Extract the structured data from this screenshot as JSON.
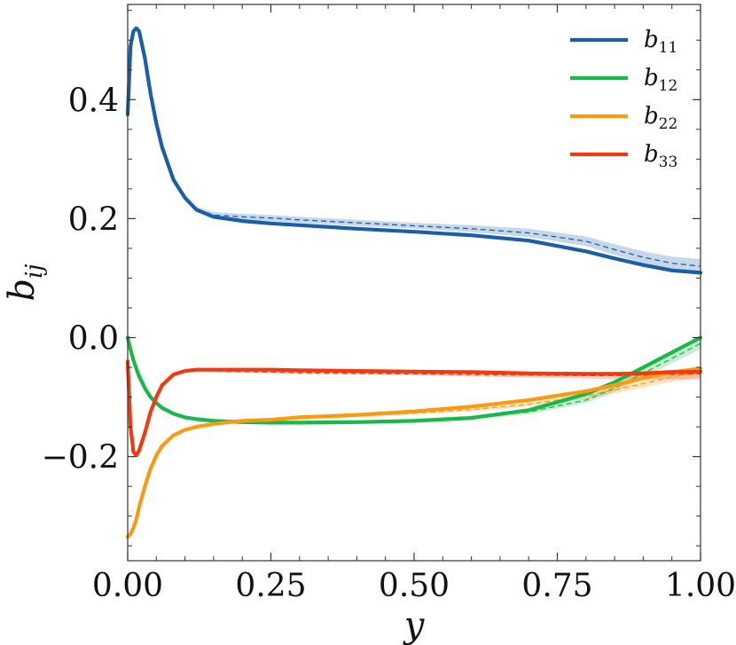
{
  "chart_data": {
    "type": "line",
    "xlabel": "y",
    "ylabel": "b",
    "ylabel_sub": "ij",
    "xlim": [
      0.0,
      1.0
    ],
    "ylim": [
      -0.375,
      0.56
    ],
    "x_ticks": [
      0.0,
      0.25,
      0.5,
      0.75,
      1.0
    ],
    "x_tick_labels": [
      "0.00",
      "0.25",
      "0.50",
      "0.75",
      "1.00"
    ],
    "y_ticks": [
      -0.2,
      0.0,
      0.2,
      0.4
    ],
    "y_tick_labels": [
      "−0.2",
      "0.0",
      "0.2",
      "0.4"
    ],
    "grid": false,
    "legend_position": "top-right",
    "x": [
      0.0,
      0.005,
      0.01,
      0.015,
      0.02,
      0.03,
      0.04,
      0.05,
      0.06,
      0.08,
      0.1,
      0.12,
      0.15,
      0.2,
      0.25,
      0.3,
      0.4,
      0.5,
      0.6,
      0.7,
      0.8,
      0.85,
      0.9,
      0.95,
      1.0
    ],
    "series": [
      {
        "name": "b",
        "sub": "11",
        "color": "#1a5ea8",
        "values": [
          0.375,
          0.49,
          0.515,
          0.52,
          0.515,
          0.47,
          0.41,
          0.36,
          0.32,
          0.265,
          0.235,
          0.215,
          0.203,
          0.196,
          0.192,
          0.189,
          0.183,
          0.178,
          0.172,
          0.163,
          0.145,
          0.133,
          0.122,
          0.113,
          0.109
        ],
        "reference": [
          0.375,
          0.49,
          0.515,
          0.52,
          0.515,
          0.47,
          0.41,
          0.36,
          0.32,
          0.265,
          0.235,
          0.216,
          0.206,
          0.203,
          0.201,
          0.198,
          0.193,
          0.188,
          0.183,
          0.176,
          0.162,
          0.148,
          0.135,
          0.125,
          0.12
        ],
        "band": [
          0.0,
          0.0,
          0.0,
          0.0,
          0.0,
          0.0,
          0.0,
          0.0,
          0.0,
          0.0,
          0.002,
          0.004,
          0.005,
          0.005,
          0.005,
          0.005,
          0.005,
          0.005,
          0.006,
          0.007,
          0.008,
          0.009,
          0.01,
          0.011,
          0.012
        ]
      },
      {
        "name": "b",
        "sub": "12",
        "color": "#18b84a",
        "values": [
          0.0,
          -0.02,
          -0.038,
          -0.052,
          -0.065,
          -0.085,
          -0.1,
          -0.11,
          -0.118,
          -0.128,
          -0.134,
          -0.137,
          -0.14,
          -0.142,
          -0.143,
          -0.143,
          -0.142,
          -0.14,
          -0.135,
          -0.122,
          -0.095,
          -0.075,
          -0.05,
          -0.025,
          0.0
        ],
        "reference": [
          0.0,
          -0.02,
          -0.038,
          -0.052,
          -0.065,
          -0.085,
          -0.1,
          -0.11,
          -0.118,
          -0.128,
          -0.134,
          -0.137,
          -0.139,
          -0.141,
          -0.142,
          -0.142,
          -0.141,
          -0.139,
          -0.134,
          -0.125,
          -0.105,
          -0.085,
          -0.06,
          -0.035,
          -0.01
        ],
        "band": [
          0.0,
          0.0,
          0.0,
          0.0,
          0.0,
          0.0,
          0.0,
          0.0,
          0.0,
          0.0,
          0.002,
          0.002,
          0.002,
          0.002,
          0.002,
          0.002,
          0.002,
          0.002,
          0.003,
          0.004,
          0.005,
          0.006,
          0.007,
          0.008,
          0.009
        ]
      },
      {
        "name": "b",
        "sub": "22",
        "color": "#fb9a12",
        "values": [
          -0.335,
          -0.33,
          -0.32,
          -0.305,
          -0.285,
          -0.25,
          -0.22,
          -0.198,
          -0.182,
          -0.164,
          -0.155,
          -0.15,
          -0.145,
          -0.14,
          -0.138,
          -0.134,
          -0.13,
          -0.124,
          -0.116,
          -0.105,
          -0.09,
          -0.08,
          -0.068,
          -0.058,
          -0.052
        ],
        "reference": [
          -0.335,
          -0.33,
          -0.32,
          -0.305,
          -0.285,
          -0.25,
          -0.22,
          -0.198,
          -0.182,
          -0.164,
          -0.155,
          -0.15,
          -0.145,
          -0.141,
          -0.139,
          -0.136,
          -0.132,
          -0.127,
          -0.121,
          -0.112,
          -0.098,
          -0.088,
          -0.077,
          -0.066,
          -0.058
        ],
        "band": [
          0.0,
          0.0,
          0.0,
          0.0,
          0.0,
          0.0,
          0.0,
          0.0,
          0.0,
          0.0,
          0.002,
          0.002,
          0.002,
          0.002,
          0.002,
          0.002,
          0.002,
          0.002,
          0.003,
          0.004,
          0.005,
          0.006,
          0.007,
          0.008,
          0.009
        ]
      },
      {
        "name": "b",
        "sub": "33",
        "color": "#f23a0f",
        "values": [
          -0.04,
          -0.15,
          -0.192,
          -0.198,
          -0.19,
          -0.16,
          -0.125,
          -0.1,
          -0.08,
          -0.062,
          -0.056,
          -0.054,
          -0.054,
          -0.054,
          -0.054,
          -0.055,
          -0.056,
          -0.057,
          -0.058,
          -0.06,
          -0.061,
          -0.061,
          -0.06,
          -0.058,
          -0.057
        ],
        "reference": [
          -0.04,
          -0.15,
          -0.192,
          -0.198,
          -0.19,
          -0.16,
          -0.125,
          -0.1,
          -0.08,
          -0.062,
          -0.056,
          -0.055,
          -0.056,
          -0.057,
          -0.058,
          -0.059,
          -0.06,
          -0.061,
          -0.062,
          -0.063,
          -0.064,
          -0.064,
          -0.063,
          -0.062,
          -0.061
        ],
        "band": [
          0.0,
          0.0,
          0.0,
          0.0,
          0.0,
          0.0,
          0.0,
          0.0,
          0.0,
          0.0,
          0.002,
          0.002,
          0.002,
          0.002,
          0.002,
          0.002,
          0.002,
          0.002,
          0.003,
          0.004,
          0.005,
          0.006,
          0.007,
          0.008,
          0.009
        ]
      }
    ]
  }
}
